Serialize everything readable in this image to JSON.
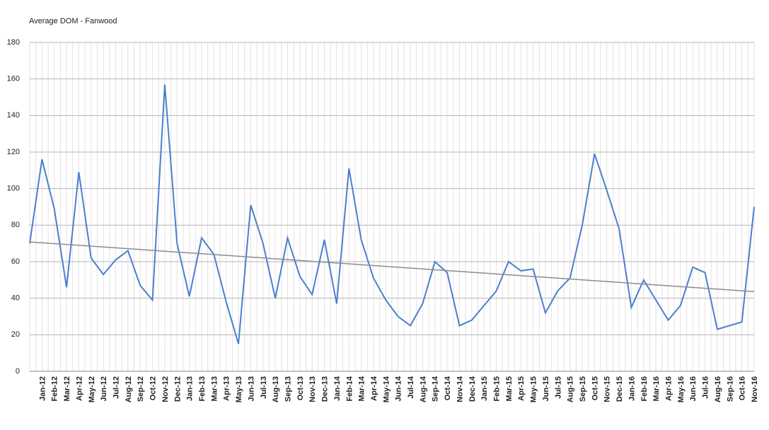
{
  "chart_data": {
    "type": "line",
    "title": "Average DOM - Fanwood",
    "categories": [
      null,
      "Jan-12",
      "Feb-12",
      "Mar-12",
      "Apr-12",
      "May-12",
      "Jun-12",
      "Jul-12",
      "Aug-12",
      "Sep-12",
      "Oct-12",
      "Nov-12",
      "Dec-12",
      "Jan-13",
      "Feb-13",
      "Mar-13",
      "Apr-13",
      "May-13",
      "Jun-13",
      "Jul-13",
      "Aug-13",
      "Sep-13",
      "Oct-13",
      "Nov-13",
      "Dec-13",
      "Jan-14",
      "Feb-14",
      "Mar-14",
      "Apr-14",
      "May-14",
      "Jun-14",
      "Jul-14",
      "Aug-14",
      "Sep-14",
      "Oct-14",
      "Nov-14",
      "Dec-14",
      "Jan-15",
      "Feb-15",
      "Mar-15",
      "Apr-15",
      "May-15",
      "Jun-15",
      "Jul-15",
      "Aug-15",
      "Sep-15",
      "Oct-15",
      "Nov-15",
      "Dec-15",
      "Jan-16",
      "Feb-16",
      "Mar-16",
      "Apr-16",
      "May-16",
      "Jun-16",
      "Jul-16",
      "Aug-16",
      "Sep-16",
      "Oct-16",
      "Nov-16"
    ],
    "values": [
      70,
      116,
      89,
      46,
      109,
      62,
      53,
      61,
      66,
      47,
      39,
      157,
      70,
      41,
      73,
      64,
      38,
      15,
      91,
      70,
      40,
      73,
      52,
      42,
      72,
      37,
      111,
      72,
      51,
      39,
      30,
      25,
      37,
      60,
      54,
      25,
      28,
      36,
      44,
      60,
      55,
      56,
      32,
      44,
      51,
      80,
      119,
      99,
      78,
      35,
      50,
      39,
      28,
      36,
      57,
      54,
      23,
      25,
      27,
      90
    ],
    "color": "#4a7fd0",
    "trendline": {
      "color": "#8c8c8c",
      "values": [
        70.8,
        43.6
      ]
    },
    "ylim": [
      0,
      180
    ],
    "yticks": [
      0,
      20,
      40,
      60,
      80,
      100,
      120,
      140,
      160,
      180
    ],
    "grid": true
  }
}
